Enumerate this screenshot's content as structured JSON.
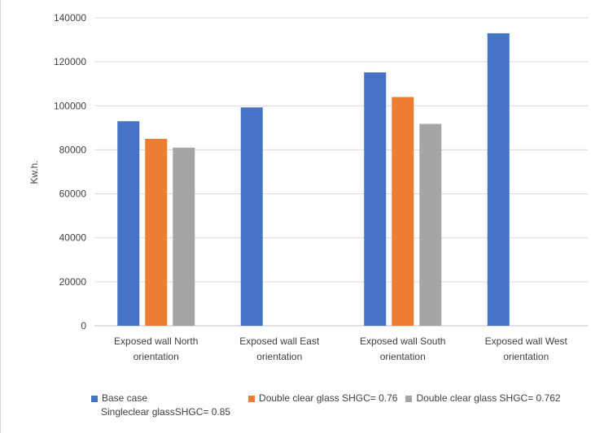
{
  "chart_data": {
    "type": "bar",
    "title": "",
    "xlabel": "",
    "ylabel": "Kw.h.",
    "ylim": [
      0,
      140000
    ],
    "yticks": [
      0,
      20000,
      40000,
      60000,
      80000,
      100000,
      120000,
      140000
    ],
    "grid": true,
    "legend_position": "bottom",
    "categories": [
      [
        "Exposed wall North",
        "orientation"
      ],
      [
        "Exposed wall East",
        "orientation"
      ],
      [
        "Exposed wall South",
        "orientation"
      ],
      [
        "Exposed wall West",
        "orientation"
      ]
    ],
    "series": [
      {
        "name": "Base case",
        "name_extra": "Singleclear glassSHGC= 0.85",
        "color": "#4472c4",
        "values": [
          93000,
          99300,
          115200,
          133000
        ]
      },
      {
        "name": "Double clear glass SHGC= 0.76",
        "color": "#ed7d31",
        "values": [
          85000,
          null,
          104000,
          null
        ]
      },
      {
        "name": "Double clear glass SHGC= 0.762",
        "color": "#a5a5a5",
        "values": [
          81000,
          null,
          91800,
          null
        ]
      }
    ]
  }
}
